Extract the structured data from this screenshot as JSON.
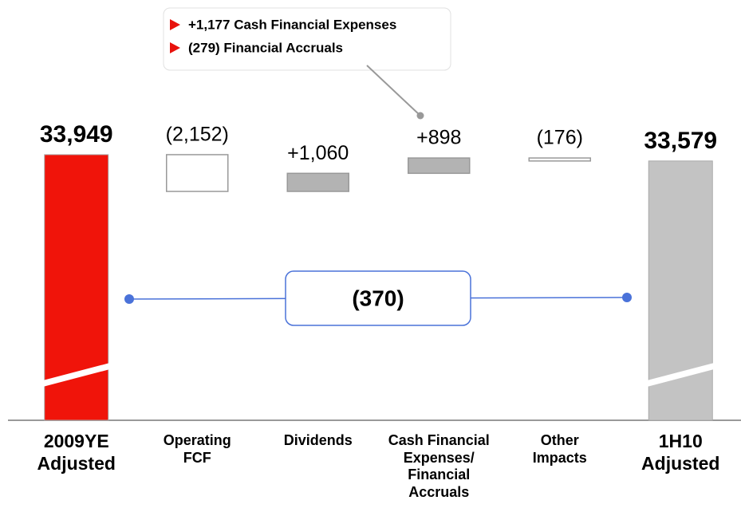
{
  "chart_data": {
    "type": "waterfall",
    "categories": [
      "2009YE Adjusted",
      "Operating FCF",
      "Dividends",
      "Cash Financial Expenses/ Financial Accruals",
      "Other Impacts",
      "1H10 Adjusted"
    ],
    "values": [
      33949,
      -2152,
      1060,
      898,
      -176,
      33579
    ],
    "value_labels": [
      "33,949",
      "(2,152)",
      "+1,060",
      "+898",
      "(176)",
      "33,579"
    ],
    "measure": [
      "total",
      "relative",
      "relative",
      "relative",
      "relative",
      "total"
    ],
    "colors": [
      "#f0140a",
      "#ffffff",
      "#b3b3b3",
      "#b3b3b3",
      "#ffffff",
      "#c3c3c3"
    ],
    "ylim": [
      18400,
      36000
    ],
    "axis_break": true,
    "annotations": {
      "total_change": "(370)",
      "callout": [
        "+1,177 Cash Financial Expenses",
        "(279) Financial Accruals"
      ]
    }
  }
}
